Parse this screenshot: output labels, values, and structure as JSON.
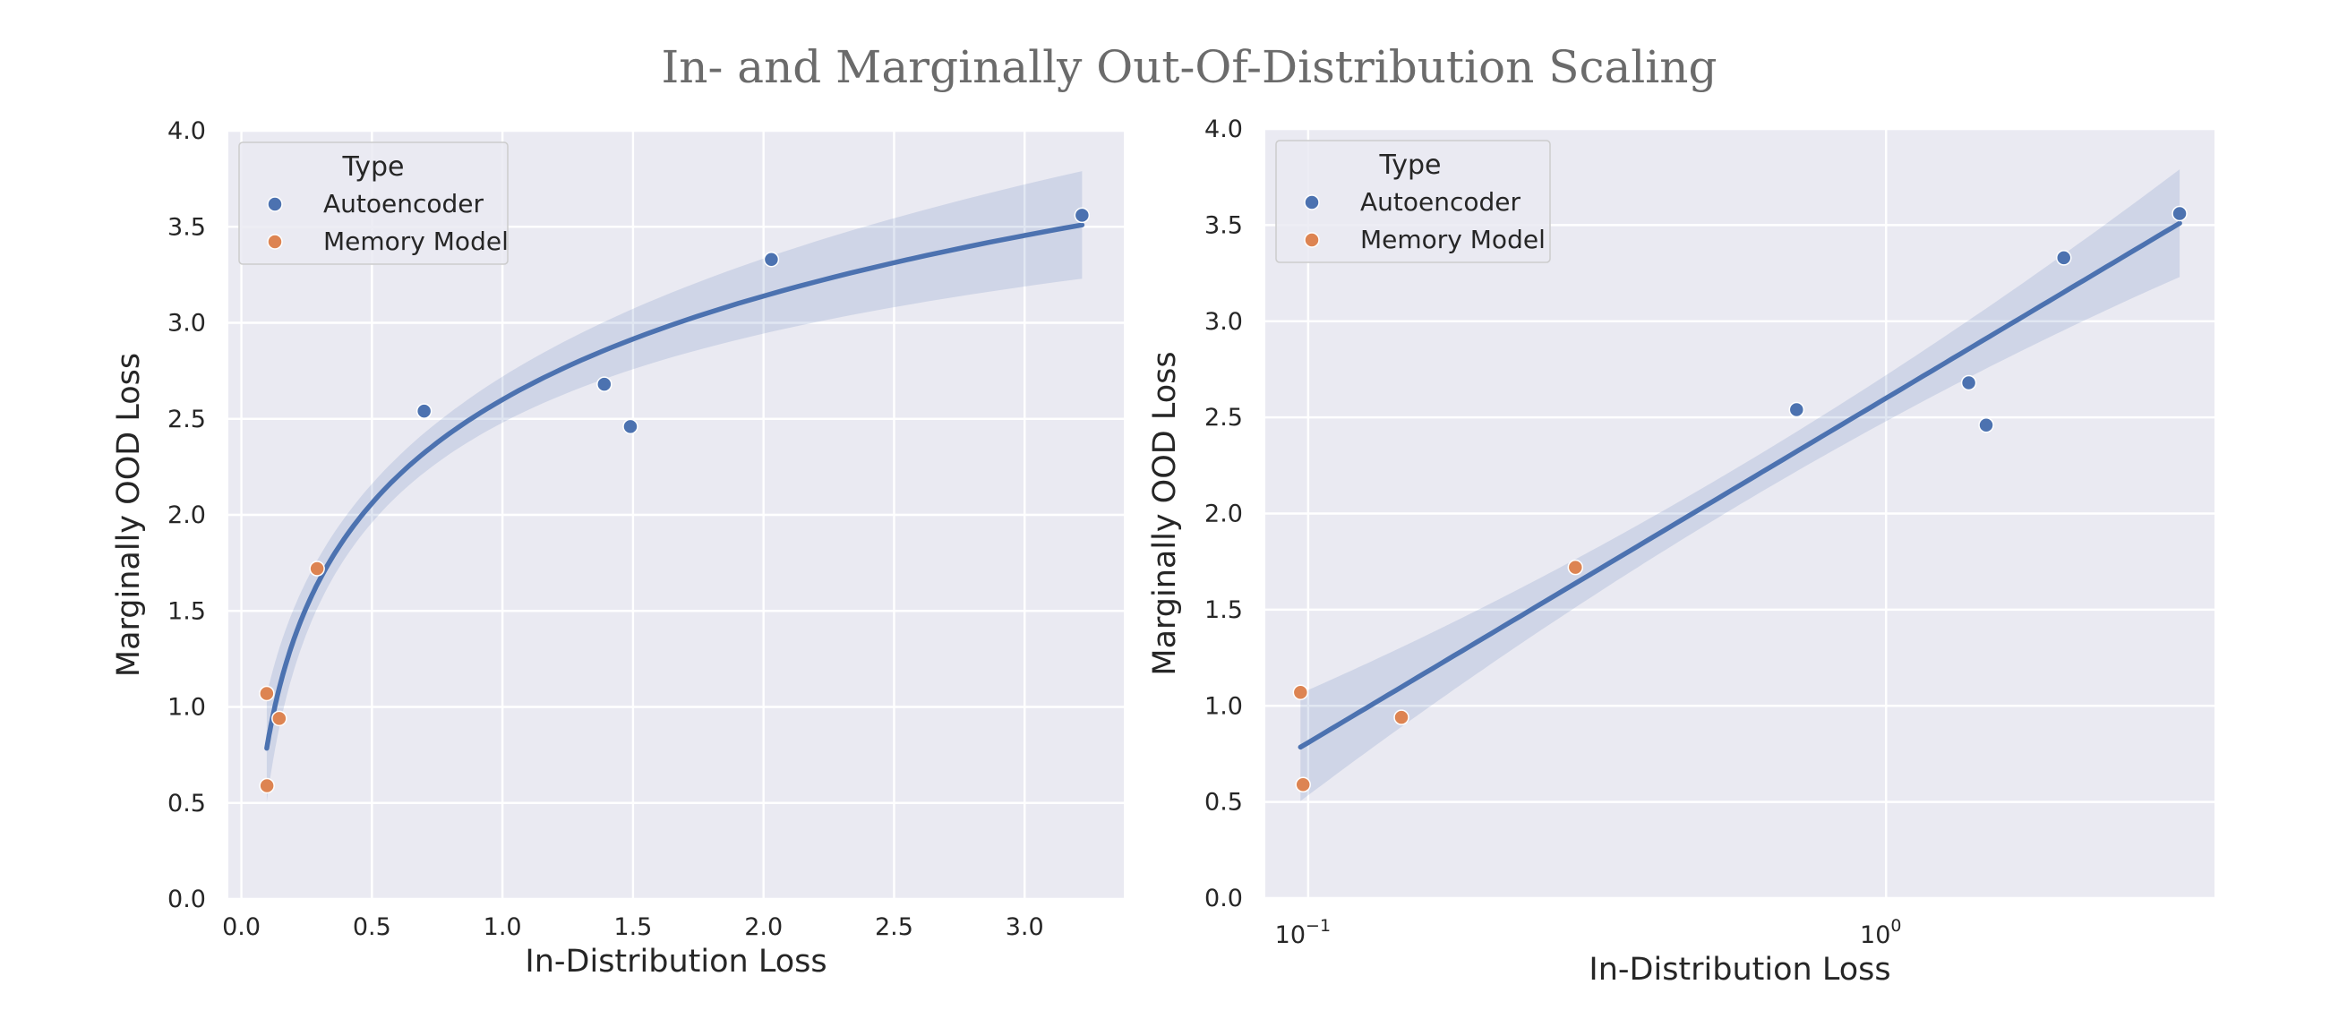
{
  "suptitle": "In- and Marginally Out-Of-Distribution Scaling",
  "colors": {
    "axes_bg": "#EAEAF2",
    "grid": "#FFFFFF",
    "autoencoder": "#4C72B0",
    "memory_model": "#DD8452",
    "band": "#4C72B0"
  },
  "chart_data": [
    {
      "type": "scatter",
      "panel": "left",
      "xlabel": "In-Distribution Loss",
      "ylabel": "Marginally OOD Loss",
      "xscale": "linear",
      "xlim": [
        -0.05,
        3.38
      ],
      "ylim": [
        0.0,
        4.0
      ],
      "xticks": [
        0.0,
        0.5,
        1.0,
        1.5,
        2.0,
        2.5,
        3.0
      ],
      "xtick_labels": [
        "0.0",
        "0.5",
        "1.0",
        "1.5",
        "2.0",
        "2.5",
        "3.0"
      ],
      "yticks": [
        0.0,
        0.5,
        1.0,
        1.5,
        2.0,
        2.5,
        3.0,
        3.5,
        4.0
      ],
      "ytick_labels": [
        "0.0",
        "0.5",
        "1.0",
        "1.5",
        "2.0",
        "2.5",
        "3.0",
        "3.5",
        "4.0"
      ],
      "grid": true,
      "legend": {
        "title": "Type",
        "position": "top-left",
        "entries": [
          "Autoencoder",
          "Memory Model"
        ]
      },
      "series": [
        {
          "name": "Autoencoder",
          "points": [
            [
              0.7,
              2.54
            ],
            [
              1.39,
              2.68
            ],
            [
              1.49,
              2.46
            ],
            [
              2.03,
              3.33
            ],
            [
              3.22,
              3.56
            ]
          ]
        },
        {
          "name": "Memory Model",
          "points": [
            [
              0.097,
              1.07
            ],
            [
              0.098,
              0.59
            ],
            [
              0.145,
              0.94
            ],
            [
              0.29,
              1.72
            ]
          ]
        }
      ],
      "fit": {
        "kind": "log-linear",
        "intercept": 2.6,
        "slope_per_ln": 0.778,
        "x_range": [
          0.097,
          3.22
        ],
        "ci_halfwidth_center": 0.1,
        "ci_halfwidth_edge": 0.28
      }
    },
    {
      "type": "scatter",
      "panel": "right",
      "xlabel": "In-Distribution Loss",
      "ylabel": "Marginally OOD Loss",
      "xscale": "log",
      "xlim": [
        0.0843,
        3.7
      ],
      "ylim": [
        0.0,
        4.0
      ],
      "xticks": [
        0.1,
        1.0
      ],
      "xtick_labels": [
        {
          "base": "10",
          "exp": "−1"
        },
        {
          "base": "10",
          "exp": "0"
        }
      ],
      "yticks": [
        0.0,
        0.5,
        1.0,
        1.5,
        2.0,
        2.5,
        3.0,
        3.5,
        4.0
      ],
      "ytick_labels": [
        "0.0",
        "0.5",
        "1.0",
        "1.5",
        "2.0",
        "2.5",
        "3.0",
        "3.5",
        "4.0"
      ],
      "grid": true,
      "legend": {
        "title": "Type",
        "position": "top-left",
        "entries": [
          "Autoencoder",
          "Memory Model"
        ]
      },
      "series": [
        {
          "name": "Autoencoder",
          "points": [
            [
              0.7,
              2.54
            ],
            [
              1.39,
              2.68
            ],
            [
              1.49,
              2.46
            ],
            [
              2.03,
              3.33
            ],
            [
              3.22,
              3.56
            ]
          ]
        },
        {
          "name": "Memory Model",
          "points": [
            [
              0.097,
              1.07
            ],
            [
              0.098,
              0.59
            ],
            [
              0.145,
              0.94
            ],
            [
              0.29,
              1.72
            ]
          ]
        }
      ],
      "fit": {
        "kind": "log-linear",
        "intercept": 2.6,
        "slope_per_ln": 0.778,
        "x_range": [
          0.097,
          3.22
        ],
        "ci_halfwidth_center": 0.1,
        "ci_halfwidth_edge": 0.28
      }
    }
  ]
}
